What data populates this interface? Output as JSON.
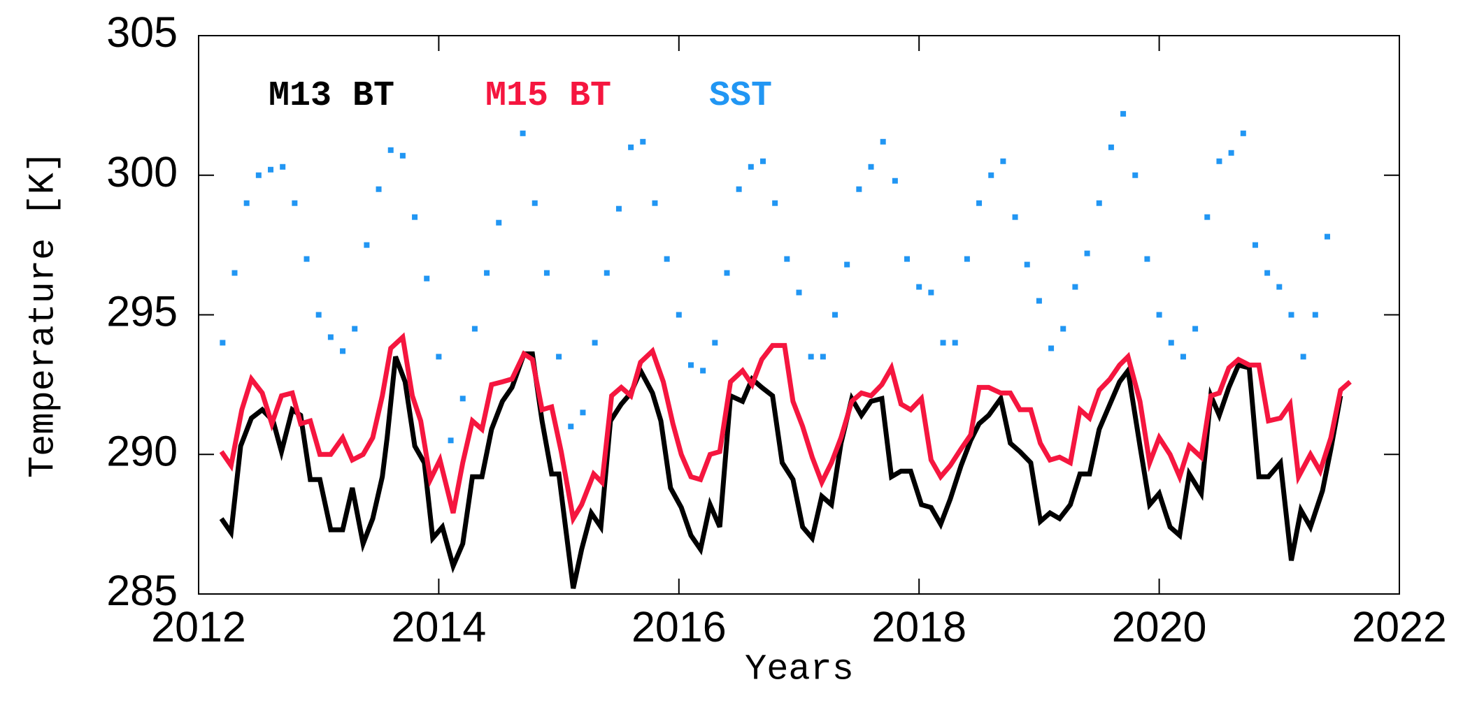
{
  "chart_data": {
    "type": "line",
    "xlabel": "Years",
    "ylabel": "Temperature [K]",
    "xlim": [
      2012,
      2022
    ],
    "xticks": [
      2012,
      2014,
      2016,
      2018,
      2020,
      2022
    ],
    "ylim": [
      285,
      305
    ],
    "yticks": [
      285,
      290,
      295,
      300,
      305
    ],
    "legend": "upper left",
    "series": [
      {
        "name": "M13 BT",
        "color": "#000000",
        "type": "line",
        "x": [
          2012.19,
          2012.27,
          2012.35,
          2012.44,
          2012.53,
          2012.62,
          2012.69,
          2012.78,
          2012.85,
          2012.93,
          2013.01,
          2013.1,
          2013.2,
          2013.28,
          2013.37,
          2013.45,
          2013.53,
          2013.57,
          2013.64,
          2013.72,
          2013.8,
          2013.88,
          2013.95,
          2014.03,
          2014.12,
          2014.2,
          2014.28,
          2014.36,
          2014.44,
          2014.53,
          2014.61,
          2014.71,
          2014.78,
          2014.86,
          2014.94,
          2015.0,
          2015.12,
          2015.19,
          2015.27,
          2015.35,
          2015.43,
          2015.52,
          2015.6,
          2015.68,
          2015.78,
          2015.85,
          2015.93,
          2016.02,
          2016.1,
          2016.18,
          2016.26,
          2016.34,
          2016.43,
          2016.53,
          2016.61,
          2016.69,
          2016.78,
          2016.86,
          2016.95,
          2017.03,
          2017.11,
          2017.19,
          2017.27,
          2017.35,
          2017.44,
          2017.52,
          2017.6,
          2017.69,
          2017.77,
          2017.85,
          2017.93,
          2018.02,
          2018.1,
          2018.18,
          2018.26,
          2018.35,
          2018.43,
          2018.5,
          2018.58,
          2018.68,
          2018.76,
          2018.84,
          2018.93,
          2019.01,
          2019.09,
          2019.17,
          2019.26,
          2019.34,
          2019.42,
          2019.5,
          2019.59,
          2019.67,
          2019.74,
          2019.84,
          2019.92,
          2020.0,
          2020.09,
          2020.17,
          2020.25,
          2020.35,
          2020.43,
          2020.5,
          2020.58,
          2020.66,
          2020.75,
          2020.83,
          2020.91,
          2021.01,
          2021.1,
          2021.18,
          2021.26,
          2021.36,
          2021.43,
          2021.51
        ],
        "values": [
          287.7,
          287.2,
          290.3,
          291.3,
          291.6,
          291.2,
          290.1,
          291.6,
          291.4,
          289.1,
          289.1,
          287.3,
          287.3,
          288.8,
          286.8,
          287.7,
          289.2,
          290.6,
          293.5,
          292.6,
          290.3,
          289.7,
          287.0,
          287.4,
          286.0,
          286.8,
          289.2,
          289.2,
          290.9,
          291.9,
          292.4,
          293.6,
          293.6,
          291.2,
          289.3,
          289.3,
          285.2,
          286.6,
          287.9,
          287.4,
          291.2,
          291.8,
          292.2,
          293.0,
          292.2,
          291.2,
          288.8,
          288.1,
          287.1,
          286.6,
          288.2,
          287.4,
          292.1,
          291.9,
          292.7,
          292.4,
          292.1,
          289.7,
          289.1,
          287.4,
          287.0,
          288.5,
          288.2,
          290.4,
          292.0,
          291.4,
          291.9,
          292.0,
          289.2,
          289.4,
          289.4,
          288.2,
          288.1,
          287.5,
          288.4,
          289.6,
          290.5,
          291.1,
          291.4,
          292.0,
          290.4,
          290.1,
          289.7,
          287.6,
          287.9,
          287.7,
          288.2,
          289.3,
          289.3,
          290.9,
          291.8,
          292.6,
          293.0,
          290.3,
          288.2,
          288.6,
          287.4,
          287.1,
          289.3,
          288.6,
          292.1,
          291.4,
          292.4,
          293.2,
          293.1,
          289.2,
          289.2,
          289.7,
          286.2,
          288.0,
          287.4,
          288.7,
          290.2,
          292.1
        ]
      },
      {
        "name": "M15 BT",
        "color": "#f5163f",
        "type": "line",
        "x": [
          2012.19,
          2012.27,
          2012.36,
          2012.44,
          2012.53,
          2012.61,
          2012.69,
          2012.78,
          2012.85,
          2012.93,
          2013.01,
          2013.1,
          2013.2,
          2013.28,
          2013.37,
          2013.45,
          2013.53,
          2013.6,
          2013.7,
          2013.78,
          2013.85,
          2013.93,
          2014.01,
          2014.12,
          2014.2,
          2014.28,
          2014.36,
          2014.44,
          2014.53,
          2014.61,
          2014.71,
          2014.78,
          2014.86,
          2014.94,
          2015.02,
          2015.12,
          2015.19,
          2015.29,
          2015.36,
          2015.44,
          2015.52,
          2015.6,
          2015.68,
          2015.78,
          2015.87,
          2015.95,
          2016.02,
          2016.1,
          2016.18,
          2016.26,
          2016.34,
          2016.43,
          2016.53,
          2016.61,
          2016.69,
          2016.78,
          2016.88,
          2016.95,
          2017.03,
          2017.11,
          2017.19,
          2017.27,
          2017.35,
          2017.44,
          2017.52,
          2017.6,
          2017.69,
          2017.77,
          2017.85,
          2017.93,
          2018.02,
          2018.1,
          2018.18,
          2018.26,
          2018.35,
          2018.43,
          2018.5,
          2018.58,
          2018.68,
          2018.76,
          2018.84,
          2018.93,
          2019.01,
          2019.09,
          2019.17,
          2019.26,
          2019.34,
          2019.42,
          2019.5,
          2019.59,
          2019.67,
          2019.74,
          2019.84,
          2019.92,
          2020.0,
          2020.09,
          2020.17,
          2020.25,
          2020.35,
          2020.43,
          2020.5,
          2020.58,
          2020.66,
          2020.75,
          2020.83,
          2020.91,
          2021.01,
          2021.09,
          2021.16,
          2021.26,
          2021.34,
          2021.43,
          2021.51,
          2021.59
        ],
        "values": [
          290.1,
          289.6,
          291.6,
          292.7,
          292.2,
          291.1,
          292.1,
          292.2,
          291.1,
          291.2,
          290.0,
          290.0,
          290.6,
          289.8,
          290.0,
          290.6,
          292.1,
          293.8,
          294.2,
          292.1,
          291.2,
          289.1,
          289.8,
          287.9,
          289.7,
          291.2,
          290.9,
          292.5,
          292.6,
          292.7,
          293.6,
          293.4,
          291.6,
          291.7,
          290.1,
          287.7,
          288.2,
          289.3,
          289.0,
          292.1,
          292.4,
          292.1,
          293.3,
          293.7,
          292.6,
          291.1,
          290.0,
          289.2,
          289.1,
          290.0,
          290.1,
          292.6,
          293.0,
          292.5,
          293.4,
          293.9,
          293.9,
          291.9,
          291.0,
          289.9,
          289.0,
          289.7,
          290.6,
          291.9,
          292.2,
          292.1,
          292.5,
          293.1,
          291.8,
          291.6,
          292.0,
          289.8,
          289.2,
          289.6,
          290.2,
          290.7,
          292.4,
          292.4,
          292.2,
          292.2,
          291.6,
          291.6,
          290.4,
          289.8,
          289.9,
          289.7,
          291.6,
          291.3,
          292.3,
          292.7,
          293.2,
          293.5,
          291.9,
          289.7,
          290.6,
          290.0,
          289.2,
          290.3,
          289.9,
          292.1,
          292.2,
          293.1,
          293.4,
          293.2,
          293.2,
          291.2,
          291.3,
          291.8,
          289.2,
          290.0,
          289.4,
          290.6,
          292.3,
          292.6
        ]
      },
      {
        "name": "SST",
        "color": "#2196f3",
        "type": "scatter",
        "x": [
          2012.2,
          2012.3,
          2012.4,
          2012.5,
          2012.6,
          2012.7,
          2012.8,
          2012.9,
          2013.0,
          2013.1,
          2013.2,
          2013.3,
          2013.4,
          2013.5,
          2013.6,
          2013.7,
          2013.8,
          2013.9,
          2014.0,
          2014.1,
          2014.2,
          2014.3,
          2014.4,
          2014.5,
          2014.7,
          2014.8,
          2014.9,
          2015.0,
          2015.1,
          2015.2,
          2015.3,
          2015.4,
          2015.5,
          2015.6,
          2015.7,
          2015.8,
          2015.9,
          2016.0,
          2016.1,
          2016.2,
          2016.3,
          2016.4,
          2016.5,
          2016.6,
          2016.7,
          2016.8,
          2016.9,
          2017.0,
          2017.1,
          2017.2,
          2017.3,
          2017.4,
          2017.5,
          2017.6,
          2017.7,
          2017.8,
          2017.9,
          2018.0,
          2018.1,
          2018.2,
          2018.3,
          2018.4,
          2018.5,
          2018.6,
          2018.7,
          2018.8,
          2018.9,
          2019.0,
          2019.1,
          2019.2,
          2019.3,
          2019.4,
          2019.5,
          2019.6,
          2019.7,
          2019.8,
          2019.9,
          2020.0,
          2020.1,
          2020.2,
          2020.3,
          2020.4,
          2020.5,
          2020.6,
          2020.7,
          2020.8,
          2020.9,
          2021.0,
          2021.1,
          2021.2,
          2021.3,
          2021.4
        ],
        "values": [
          294.0,
          296.5,
          299.0,
          300.0,
          300.2,
          300.3,
          299.0,
          297.0,
          295.0,
          294.2,
          293.7,
          294.5,
          297.5,
          299.5,
          300.9,
          300.7,
          298.5,
          296.3,
          293.5,
          290.5,
          292.0,
          294.5,
          296.5,
          298.3,
          301.5,
          299.0,
          296.5,
          293.5,
          291.0,
          291.5,
          294.0,
          296.5,
          298.8,
          301.0,
          301.2,
          299.0,
          297.0,
          295.0,
          293.2,
          293.0,
          294.0,
          296.5,
          299.5,
          300.3,
          300.5,
          299.0,
          297.0,
          295.8,
          293.5,
          293.5,
          295.0,
          296.8,
          299.5,
          300.3,
          301.2,
          299.8,
          297.0,
          296.0,
          295.8,
          294.0,
          294.0,
          297.0,
          299.0,
          300.0,
          300.5,
          298.5,
          296.8,
          295.5,
          293.8,
          294.5,
          296.0,
          297.2,
          299.0,
          301.0,
          302.2,
          300.0,
          297.0,
          295.0,
          294.0,
          293.5,
          294.5,
          298.5,
          300.5,
          300.8,
          301.5,
          297.5,
          296.5,
          296.0,
          295.0,
          293.5,
          295.0,
          297.8
        ]
      }
    ]
  }
}
